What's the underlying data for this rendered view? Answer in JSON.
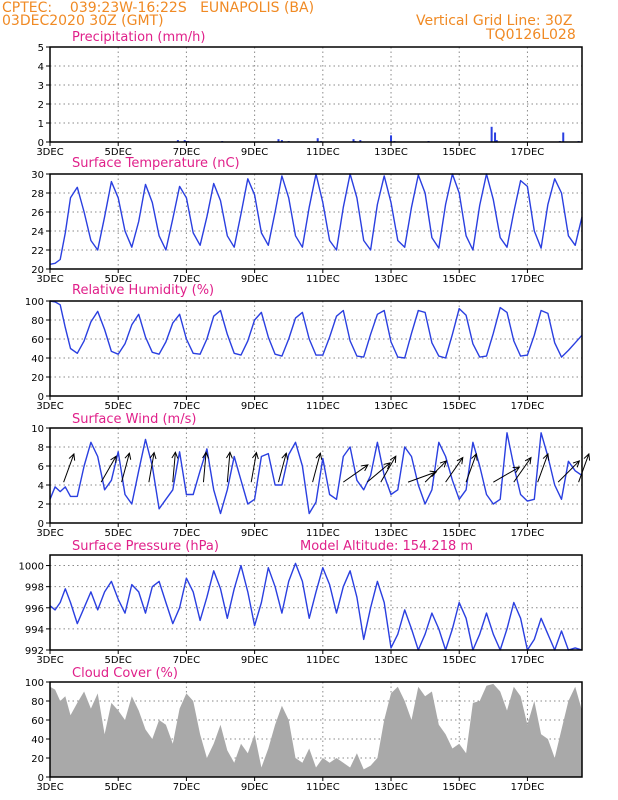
{
  "header": {
    "line1_left": "CPTEC:    039:23W-16:22S   EUNAPOLIS (BA)",
    "line2_left": "03DEC2020 30Z (GMT)",
    "line1_right": "Vertical Grid Line: 30Z",
    "line2_right": "TQ0126L028"
  },
  "colors": {
    "header": "#f08a24",
    "title": "#e0208a",
    "series": "#2a3fe0",
    "cloud": "#a9a9a9",
    "grid": "#8a8a8a"
  },
  "chart_data": [
    {
      "type": "bar",
      "title": "Precipitation (mm/h)",
      "x_ticks": [
        "3DEC",
        "5DEC",
        "7DEC",
        "9DEC",
        "11DEC",
        "13DEC",
        "15DEC",
        "17DEC"
      ],
      "y_ticks": [
        "0",
        "1",
        "2",
        "3",
        "4",
        "5"
      ],
      "ylim": [
        0,
        5
      ],
      "xlim": [
        0,
        15.6
      ],
      "grid": true,
      "bars": [
        [
          3.95,
          0.1
        ],
        [
          4.05,
          0.05
        ],
        [
          3.75,
          0.1
        ],
        [
          4.0,
          0.05
        ],
        [
          5.05,
          0.05
        ],
        [
          6.7,
          0.15
        ],
        [
          6.8,
          0.1
        ],
        [
          7.0,
          0.05
        ],
        [
          7.85,
          0.2
        ],
        [
          7.95,
          0.05
        ],
        [
          8.9,
          0.15
        ],
        [
          8.95,
          0.05
        ],
        [
          9.1,
          0.1
        ],
        [
          10.0,
          0.35
        ],
        [
          10.1,
          0.05
        ],
        [
          11.1,
          0.05
        ],
        [
          12.95,
          0.8
        ],
        [
          13.05,
          0.5
        ],
        [
          13.1,
          0.1
        ],
        [
          15.05,
          0.5
        ],
        [
          14.95,
          0.05
        ],
        [
          15.5,
          0.05
        ]
      ]
    },
    {
      "type": "line",
      "title": "Surface Temperature (nC)",
      "x_ticks": [
        "3DEC",
        "5DEC",
        "7DEC",
        "9DEC",
        "11DEC",
        "13DEC",
        "15DEC",
        "17DEC"
      ],
      "y_ticks": [
        "20",
        "22",
        "24",
        "26",
        "28",
        "30"
      ],
      "ylim": [
        20,
        30
      ],
      "xlim": [
        0,
        15.6
      ],
      "grid": true,
      "x": [
        0.0,
        0.15,
        0.3,
        0.45,
        0.6,
        0.8,
        1.0,
        1.2,
        1.4,
        1.6,
        1.8,
        2.0,
        2.2,
        2.4,
        2.6,
        2.8,
        3.0,
        3.2,
        3.4,
        3.6,
        3.8,
        4.0,
        4.2,
        4.4,
        4.6,
        4.8,
        5.0,
        5.2,
        5.4,
        5.6,
        5.8,
        6.0,
        6.2,
        6.4,
        6.6,
        6.8,
        7.0,
        7.2,
        7.4,
        7.6,
        7.8,
        8.0,
        8.2,
        8.4,
        8.6,
        8.8,
        9.0,
        9.2,
        9.4,
        9.6,
        9.8,
        10.0,
        10.2,
        10.4,
        10.6,
        10.8,
        11.0,
        11.2,
        11.4,
        11.6,
        11.8,
        12.0,
        12.2,
        12.4,
        12.6,
        12.8,
        13.0,
        13.2,
        13.4,
        13.6,
        13.8,
        14.0,
        14.2,
        14.4,
        14.6,
        14.8,
        15.0,
        15.2,
        15.4,
        15.6
      ],
      "series": [
        {
          "values": [
            20.5,
            20.6,
            21.0,
            23.8,
            27.5,
            28.6,
            26.0,
            23.0,
            22.0,
            25.5,
            29.2,
            27.5,
            24.0,
            22.3,
            25.0,
            28.9,
            27.0,
            23.5,
            22.0,
            25.3,
            28.7,
            27.5,
            23.8,
            22.5,
            25.5,
            29.0,
            27.2,
            23.5,
            22.3,
            25.8,
            29.5,
            27.8,
            23.8,
            22.5,
            26.0,
            29.8,
            27.5,
            23.5,
            22.3,
            26.5,
            30.0,
            27.0,
            23.0,
            22.0,
            26.5,
            30.0,
            27.5,
            23.0,
            22.0,
            26.8,
            29.8,
            27.0,
            23.0,
            22.3,
            26.5,
            29.9,
            28.0,
            23.3,
            22.2,
            26.8,
            30.0,
            28.0,
            23.5,
            22.0,
            26.7,
            30.0,
            27.3,
            23.3,
            22.3,
            26.0,
            29.3,
            28.7,
            24.0,
            22.2,
            26.8,
            29.5,
            28.0,
            23.5,
            22.5,
            25.5
          ]
        }
      ]
    },
    {
      "type": "line",
      "title": "Relative Humidity (%)",
      "x_ticks": [
        "3DEC",
        "5DEC",
        "7DEC",
        "9DEC",
        "11DEC",
        "13DEC",
        "15DEC",
        "17DEC"
      ],
      "y_ticks": [
        "0",
        "20",
        "40",
        "60",
        "80",
        "100"
      ],
      "ylim": [
        0,
        100
      ],
      "xlim": [
        0,
        15.6
      ],
      "grid": true,
      "x": [
        0.0,
        0.15,
        0.3,
        0.45,
        0.6,
        0.8,
        1.0,
        1.2,
        1.4,
        1.6,
        1.8,
        2.0,
        2.2,
        2.4,
        2.6,
        2.8,
        3.0,
        3.2,
        3.4,
        3.6,
        3.8,
        4.0,
        4.2,
        4.4,
        4.6,
        4.8,
        5.0,
        5.2,
        5.4,
        5.6,
        5.8,
        6.0,
        6.2,
        6.4,
        6.6,
        6.8,
        7.0,
        7.2,
        7.4,
        7.6,
        7.8,
        8.0,
        8.2,
        8.4,
        8.6,
        8.8,
        9.0,
        9.2,
        9.4,
        9.6,
        9.8,
        10.0,
        10.2,
        10.4,
        10.6,
        10.8,
        11.0,
        11.2,
        11.4,
        11.6,
        11.8,
        12.0,
        12.2,
        12.4,
        12.6,
        12.8,
        13.0,
        13.2,
        13.4,
        13.6,
        13.8,
        14.0,
        14.2,
        14.4,
        14.6,
        14.8,
        15.0,
        15.2,
        15.4,
        15.6
      ],
      "series": [
        {
          "values": [
            100,
            99,
            96,
            72,
            50,
            45,
            58,
            78,
            89,
            70,
            47,
            44,
            55,
            75,
            86,
            62,
            46,
            44,
            57,
            77,
            86,
            60,
            45,
            44,
            60,
            84,
            90,
            65,
            45,
            43,
            58,
            80,
            88,
            62,
            44,
            42,
            60,
            82,
            88,
            60,
            43,
            43,
            62,
            84,
            90,
            58,
            42,
            41,
            65,
            86,
            90,
            57,
            41,
            40,
            66,
            90,
            88,
            56,
            42,
            40,
            65,
            92,
            85,
            55,
            41,
            42,
            66,
            93,
            88,
            58,
            42,
            43,
            64,
            90,
            87,
            56,
            41,
            48,
            56,
            64
          ]
        }
      ]
    },
    {
      "type": "line",
      "title": "Surface Wind (m/s)",
      "x_ticks": [
        "3DEC",
        "5DEC",
        "7DEC",
        "9DEC",
        "11DEC",
        "13DEC",
        "15DEC",
        "17DEC"
      ],
      "y_ticks": [
        "0",
        "2",
        "4",
        "6",
        "8",
        "10"
      ],
      "ylim": [
        0,
        10
      ],
      "xlim": [
        0,
        15.6
      ],
      "grid": true,
      "x": [
        0.0,
        0.15,
        0.3,
        0.45,
        0.6,
        0.8,
        1.0,
        1.2,
        1.4,
        1.6,
        1.8,
        2.0,
        2.2,
        2.4,
        2.6,
        2.8,
        3.0,
        3.2,
        3.4,
        3.6,
        3.8,
        4.0,
        4.2,
        4.4,
        4.6,
        4.8,
        5.0,
        5.2,
        5.4,
        5.6,
        5.8,
        6.0,
        6.2,
        6.4,
        6.6,
        6.8,
        7.0,
        7.2,
        7.4,
        7.6,
        7.8,
        8.0,
        8.2,
        8.4,
        8.6,
        8.8,
        9.0,
        9.2,
        9.4,
        9.6,
        9.8,
        10.0,
        10.2,
        10.4,
        10.6,
        10.8,
        11.0,
        11.2,
        11.4,
        11.6,
        11.8,
        12.0,
        12.2,
        12.4,
        12.6,
        12.8,
        13.0,
        13.2,
        13.4,
        13.6,
        13.8,
        14.0,
        14.2,
        14.4,
        14.6,
        14.8,
        15.0,
        15.2,
        15.4,
        15.6
      ],
      "series": [
        {
          "values": [
            2.5,
            3.8,
            3.3,
            3.8,
            2.8,
            2.8,
            6.0,
            8.5,
            7.0,
            3.5,
            4.5,
            7.5,
            3.0,
            2.0,
            5.5,
            8.8,
            6.0,
            1.5,
            2.5,
            3.5,
            7.5,
            3.0,
            3.0,
            5.5,
            7.8,
            3.5,
            1.0,
            3.5,
            7.0,
            4.5,
            2.0,
            2.5,
            7.0,
            7.3,
            4.0,
            4.0,
            7.2,
            8.5,
            6.0,
            1.0,
            2.2,
            6.8,
            3.0,
            2.5,
            7.0,
            8.0,
            4.5,
            3.5,
            5.0,
            8.5,
            5.0,
            3.0,
            3.5,
            8.0,
            7.0,
            4.0,
            2.0,
            3.5,
            8.5,
            7.0,
            4.5,
            2.5,
            3.5,
            8.5,
            6.0,
            3.0,
            2.0,
            2.5,
            9.5,
            6.0,
            3.0,
            2.3,
            2.5,
            9.5,
            7.0,
            4.0,
            2.5,
            6.5,
            5.5,
            5.0
          ]
        }
      ],
      "arrows": [
        [
          0.4,
          200
        ],
        [
          1.5,
          210
        ],
        [
          2.1,
          195
        ],
        [
          2.9,
          190
        ],
        [
          3.6,
          185
        ],
        [
          4.5,
          185
        ],
        [
          5.2,
          185
        ],
        [
          5.9,
          190
        ],
        [
          6.7,
          195
        ],
        [
          7.7,
          195
        ],
        [
          8.6,
          235
        ],
        [
          9.3,
          230
        ],
        [
          9.7,
          210
        ],
        [
          10.5,
          250
        ],
        [
          11.0,
          225
        ],
        [
          11.6,
          215
        ],
        [
          12.2,
          200
        ],
        [
          13.0,
          240
        ],
        [
          13.6,
          215
        ],
        [
          14.3,
          200
        ],
        [
          14.9,
          225
        ],
        [
          15.5,
          200
        ]
      ]
    },
    {
      "type": "line",
      "title": "Surface Pressure (hPa)",
      "annotation": "Model Altitude: 154.218 m",
      "x_ticks": [
        "3DEC",
        "5DEC",
        "7DEC",
        "9DEC",
        "11DEC",
        "13DEC",
        "15DEC",
        "17DEC"
      ],
      "y_ticks": [
        "992",
        "994",
        "996",
        "998",
        "1000"
      ],
      "ylim": [
        992,
        1001
      ],
      "xlim": [
        0,
        15.6
      ],
      "grid": true,
      "x": [
        0.0,
        0.15,
        0.3,
        0.45,
        0.6,
        0.8,
        1.0,
        1.2,
        1.4,
        1.6,
        1.8,
        2.0,
        2.2,
        2.4,
        2.6,
        2.8,
        3.0,
        3.2,
        3.4,
        3.6,
        3.8,
        4.0,
        4.2,
        4.4,
        4.6,
        4.8,
        5.0,
        5.2,
        5.4,
        5.6,
        5.8,
        6.0,
        6.2,
        6.4,
        6.6,
        6.8,
        7.0,
        7.2,
        7.4,
        7.6,
        7.8,
        8.0,
        8.2,
        8.4,
        8.6,
        8.8,
        9.0,
        9.2,
        9.4,
        9.6,
        9.8,
        10.0,
        10.2,
        10.4,
        10.6,
        10.8,
        11.0,
        11.2,
        11.4,
        11.6,
        11.8,
        12.0,
        12.2,
        12.4,
        12.6,
        12.8,
        13.0,
        13.2,
        13.4,
        13.6,
        13.8,
        14.0,
        14.2,
        14.4,
        14.6,
        14.8,
        15.0,
        15.2,
        15.4,
        15.6
      ],
      "series": [
        {
          "values": [
            996.2,
            995.8,
            996.5,
            997.8,
            996.5,
            994.5,
            996.0,
            997.5,
            995.8,
            997.5,
            998.5,
            996.8,
            995.5,
            998.2,
            997.5,
            995.5,
            998.0,
            998.5,
            996.5,
            994.5,
            996.0,
            998.8,
            997.5,
            994.8,
            997.0,
            999.5,
            997.8,
            995.0,
            997.8,
            1000.0,
            997.5,
            994.3,
            996.5,
            999.8,
            998.0,
            995.5,
            998.5,
            1000.2,
            998.5,
            995.0,
            997.5,
            999.8,
            998.2,
            995.5,
            998.0,
            999.5,
            997.0,
            993.0,
            996.0,
            998.5,
            996.5,
            992.2,
            993.5,
            995.8,
            994.0,
            992.0,
            993.5,
            995.5,
            994.0,
            992.0,
            994.0,
            996.5,
            995.0,
            992.0,
            993.5,
            995.5,
            993.5,
            992.0,
            994.0,
            996.5,
            995.0,
            992.0,
            993.0,
            995.0,
            993.5,
            992.0,
            993.8,
            992.0,
            992.2,
            992.0
          ]
        }
      ]
    },
    {
      "type": "area",
      "title": "Cloud Cover (%)",
      "x_ticks": [
        "3DEC",
        "5DEC",
        "7DEC",
        "9DEC",
        "11DEC",
        "13DEC",
        "15DEC",
        "17DEC"
      ],
      "y_ticks": [
        "0",
        "20",
        "40",
        "60",
        "80",
        "100"
      ],
      "ylim": [
        0,
        100
      ],
      "xlim": [
        0,
        15.6
      ],
      "grid": true,
      "x": [
        0.0,
        0.15,
        0.3,
        0.45,
        0.6,
        0.8,
        1.0,
        1.2,
        1.4,
        1.6,
        1.8,
        2.0,
        2.2,
        2.4,
        2.6,
        2.8,
        3.0,
        3.2,
        3.4,
        3.6,
        3.8,
        4.0,
        4.2,
        4.4,
        4.6,
        4.8,
        5.0,
        5.2,
        5.4,
        5.6,
        5.8,
        6.0,
        6.2,
        6.4,
        6.6,
        6.8,
        7.0,
        7.2,
        7.4,
        7.6,
        7.8,
        8.0,
        8.2,
        8.4,
        8.6,
        8.8,
        9.0,
        9.2,
        9.4,
        9.6,
        9.8,
        10.0,
        10.2,
        10.4,
        10.6,
        10.8,
        11.0,
        11.2,
        11.4,
        11.6,
        11.8,
        12.0,
        12.2,
        12.4,
        12.6,
        12.8,
        13.0,
        13.2,
        13.4,
        13.6,
        13.8,
        14.0,
        14.2,
        14.4,
        14.6,
        14.8,
        15.0,
        15.2,
        15.4,
        15.6
      ],
      "series": [
        {
          "values": [
            95,
            92,
            80,
            85,
            65,
            78,
            90,
            72,
            88,
            45,
            78,
            70,
            60,
            85,
            70,
            50,
            40,
            60,
            55,
            35,
            72,
            88,
            80,
            45,
            20,
            35,
            55,
            28,
            15,
            35,
            25,
            45,
            10,
            30,
            55,
            75,
            60,
            20,
            15,
            30,
            10,
            20,
            15,
            20,
            15,
            10,
            25,
            8,
            12,
            20,
            60,
            88,
            95,
            80,
            60,
            95,
            85,
            90,
            55,
            45,
            30,
            35,
            25,
            78,
            80,
            96,
            98,
            90,
            70,
            95,
            85,
            55,
            80,
            45,
            40,
            20,
            50,
            80,
            95,
            70
          ]
        }
      ]
    }
  ]
}
